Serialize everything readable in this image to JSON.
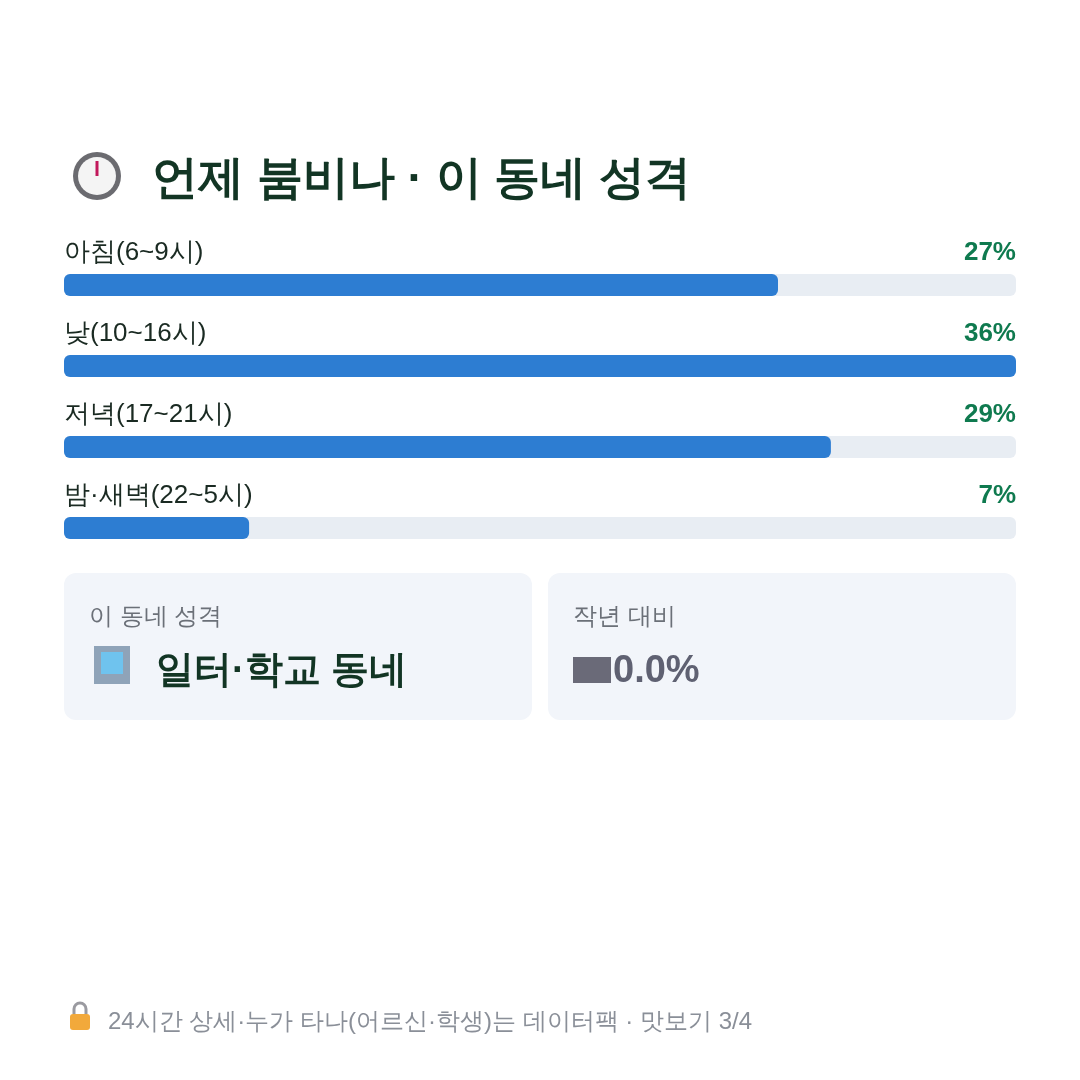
{
  "chart_data": [
    {
      "type": "bar",
      "orientation": "horizontal",
      "title": "언제 붐비나 · 이 동네 성격",
      "categories": [
        "아침(6~9시)",
        "낮(10~16시)",
        "저녁(17~21시)",
        "밤·새벽(22~5시)"
      ],
      "values": [
        27,
        36,
        29,
        7
      ],
      "value_labels": [
        "27%",
        "36%",
        "29%",
        "7%"
      ],
      "color": "#2d7dd2",
      "xlim": [
        0,
        36
      ],
      "annotations": [
        "24시간 상세·누가 타나(어르신·학생)는 데이터팩 · 맛보기 3/4"
      ]
    },
    {
      "type": "other",
      "title": "이 동네 성격",
      "annotations": [
        "일터·학교 동네"
      ]
    },
    {
      "type": "other",
      "title": "작년 대비",
      "annotations": [
        "0.0%"
      ]
    }
  ]
}
